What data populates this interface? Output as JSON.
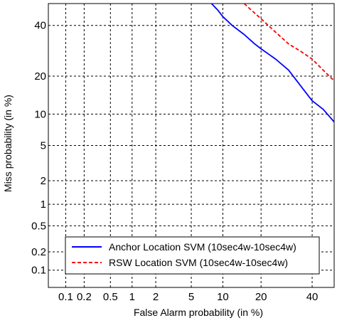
{
  "chart_data": {
    "type": "line",
    "title": "",
    "xlabel": "False Alarm probability (in %)",
    "ylabel": "Miss probability (in %)",
    "x_scale": "probit",
    "y_scale": "probit",
    "xlim": [
      0.05,
      50
    ],
    "ylim": [
      0.05,
      50
    ],
    "x_ticks": [
      0.1,
      0.2,
      0.5,
      1,
      2,
      5,
      10,
      20,
      40
    ],
    "x_tick_labels": [
      "0.1",
      "0.2",
      "0.5",
      "1",
      "2",
      "5",
      "10",
      "20",
      "40"
    ],
    "y_ticks": [
      0.1,
      0.2,
      0.5,
      1,
      2,
      5,
      10,
      20,
      40
    ],
    "y_tick_labels": [
      "0.1",
      "0.2",
      "0.5",
      "1",
      "2",
      "5",
      "10",
      "20",
      "40"
    ],
    "grid": true,
    "legend_position": "bottom-right",
    "series": [
      {
        "name": "Anchor Location SVM (10sec4w-10sec4w)",
        "color": "#0000ff",
        "style": "solid",
        "x": [
          7.9,
          9,
          10,
          12,
          15,
          18,
          20,
          25,
          30,
          35,
          40,
          45,
          50
        ],
        "y": [
          50,
          47,
          44,
          40,
          36,
          32,
          30,
          26,
          22,
          17,
          13,
          11,
          8.5
        ]
      },
      {
        "name": "RSW Location SVM (10sec4w-10sec4w)",
        "color": "#ff0000",
        "style": "dashed",
        "x": [
          15,
          17,
          20,
          25,
          30,
          35,
          40,
          45,
          50
        ],
        "y": [
          50,
          47,
          43,
          37,
          32,
          29,
          26,
          22,
          18.5
        ]
      }
    ]
  }
}
